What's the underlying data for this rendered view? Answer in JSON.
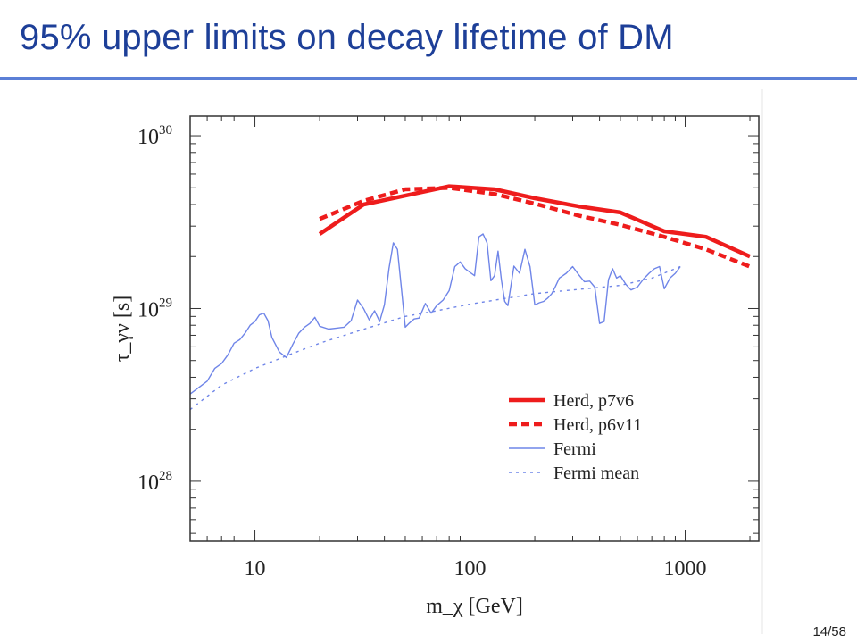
{
  "slide": {
    "title": "95% upper limits on decay lifetime of DM",
    "page_number": "14/58"
  },
  "chart_data": {
    "type": "line",
    "xscale": "log",
    "yscale": "log",
    "xlim": [
      5,
      2200
    ],
    "ylim": [
      4.5e+27,
      1.3e+30
    ],
    "xlabel": "m_χ [GeV]",
    "ylabel": "τ_γν [s]",
    "x_ticks": [
      {
        "value": 10,
        "label": "10"
      },
      {
        "value": 100,
        "label": "100"
      },
      {
        "value": 1000,
        "label": "1000"
      }
    ],
    "y_ticks": [
      {
        "value": 1e+28,
        "base": "10",
        "exp": "28"
      },
      {
        "value": 1e+29,
        "base": "10",
        "exp": "29"
      },
      {
        "value": 1e+30,
        "base": "10",
        "exp": "30"
      }
    ],
    "legend_position": "bottom-right",
    "grid": false,
    "series": [
      {
        "name": "Herd, p7v6",
        "color": "#ee1c1c",
        "style": "solid-thick",
        "x": [
          20,
          32,
          50,
          80,
          130,
          200,
          320,
          500,
          800,
          1250,
          2000
        ],
        "y": [
          2.7e+29,
          4e+29,
          4.5e+29,
          5.1e+29,
          4.9e+29,
          4.35e+29,
          3.9e+29,
          3.6e+29,
          2.8e+29,
          2.6e+29,
          2e+29
        ]
      },
      {
        "name": "Herd, p6v11",
        "color": "#ee1c1c",
        "style": "dashed-thick",
        "x": [
          20,
          32,
          50,
          80,
          130,
          200,
          320,
          500,
          800,
          1250,
          2000
        ],
        "y": [
          3.3e+29,
          4.2e+29,
          4.9e+29,
          5e+29,
          4.6e+29,
          4.05e+29,
          3.45e+29,
          3.05e+29,
          2.6e+29,
          2.2e+29,
          1.75e+29
        ]
      },
      {
        "name": "Fermi",
        "color": "#6f85e8",
        "style": "solid-thin",
        "x": [
          5,
          5.5,
          6,
          6.5,
          7,
          7.5,
          8,
          8.5,
          9,
          9.5,
          10,
          10.5,
          11,
          11.5,
          12,
          13,
          14,
          15,
          16,
          17,
          18,
          19,
          20,
          22,
          24,
          26,
          28,
          30,
          32,
          34,
          36,
          38,
          40,
          42,
          44,
          46,
          48,
          50,
          52,
          55,
          58,
          62,
          66,
          70,
          75,
          80,
          85,
          90,
          95,
          100,
          105,
          110,
          115,
          120,
          125,
          130,
          135,
          140,
          145,
          150,
          160,
          170,
          180,
          190,
          200,
          210,
          220,
          230,
          240,
          250,
          260,
          270,
          280,
          300,
          320,
          340,
          360,
          380,
          400,
          420,
          440,
          460,
          480,
          500,
          530,
          560,
          600,
          640,
          680,
          720,
          760,
          800,
          850,
          900,
          950
        ],
        "y": [
          3.2e+28,
          3.5e+28,
          3.8e+28,
          4.5e+28,
          4.8e+28,
          5.4e+28,
          6.3e+28,
          6.6e+28,
          7.2e+28,
          8e+28,
          8.4e+28,
          9.2e+28,
          9.4e+28,
          8.5e+28,
          6.8e+28,
          5.6e+28,
          5.2e+28,
          6.2e+28,
          7.2e+28,
          7.8e+28,
          8.2e+28,
          8.9e+28,
          7.9e+28,
          7.6e+28,
          7.7e+28,
          7.8e+28,
          8.5e+28,
          1.12e+29,
          1e+29,
          8.6e+28,
          9.7e+28,
          8.4e+28,
          1.05e+29,
          1.7e+29,
          2.4e+29,
          2.2e+29,
          1.3e+29,
          7.8e+28,
          8.2e+28,
          8.7e+28,
          8.8e+28,
          1.07e+29,
          9.4e+28,
          1.04e+29,
          1.12e+29,
          1.27e+29,
          1.75e+29,
          1.86e+29,
          1.7e+29,
          1.62e+29,
          1.55e+29,
          2.6e+29,
          2.7e+29,
          2.4e+29,
          1.45e+29,
          1.55e+29,
          2.15e+29,
          1.46e+29,
          1.1e+29,
          1.04e+29,
          1.76e+29,
          1.6e+29,
          2.2e+29,
          1.75e+29,
          1.05e+29,
          1.08e+29,
          1.1e+29,
          1.15e+29,
          1.22e+29,
          1.35e+29,
          1.5e+29,
          1.55e+29,
          1.6e+29,
          1.75e+29,
          1.57e+29,
          1.43e+29,
          1.44e+29,
          1.33e+29,
          8.2e+28,
          8.4e+28,
          1.47e+29,
          1.7e+29,
          1.5e+29,
          1.55e+29,
          1.38e+29,
          1.28e+29,
          1.33e+29,
          1.48e+29,
          1.6e+29,
          1.7e+29,
          1.75e+29,
          1.3e+29,
          1.5e+29,
          1.6e+29,
          1.75e+29
        ]
      },
      {
        "name": "Fermi mean",
        "color": "#6f85e8",
        "style": "dotted-thin",
        "x": [
          5,
          7,
          10,
          15,
          20,
          30,
          50,
          70,
          100,
          150,
          200,
          300,
          500,
          700,
          950
        ],
        "y": [
          2.6e+28,
          3.6e+28,
          4.5e+28,
          5.5e+28,
          6.3e+28,
          7.4e+28,
          9e+28,
          9.7e+28,
          1.06e+29,
          1.15e+29,
          1.22e+29,
          1.28e+29,
          1.36e+29,
          1.5e+29,
          1.75e+29
        ]
      }
    ]
  }
}
